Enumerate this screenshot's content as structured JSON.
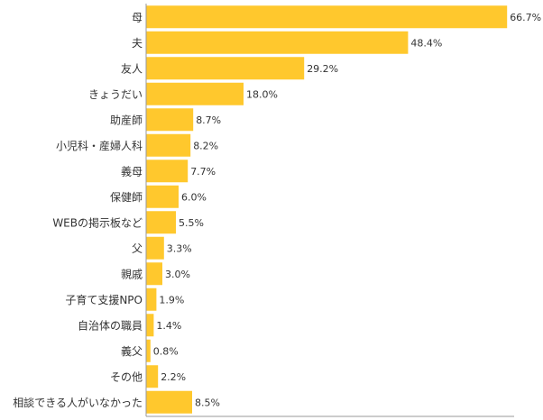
{
  "chart_data": {
    "type": "bar",
    "orientation": "horizontal",
    "categories": [
      "母",
      "夫",
      "友人",
      "きょうだい",
      "助産師",
      "小児科・産婦人科",
      "義母",
      "保健師",
      "WEBの掲示板など",
      "父",
      "親戚",
      "子育て支援NPO",
      "自治体の職員",
      "義父",
      "その他",
      "相談できる人がいなかった"
    ],
    "values": [
      66.7,
      48.4,
      29.2,
      18.0,
      8.7,
      8.2,
      7.7,
      6.0,
      5.5,
      3.3,
      3.0,
      1.9,
      1.4,
      0.8,
      2.2,
      8.5
    ],
    "value_labels": [
      "66.7%",
      "48.4%",
      "29.2%",
      "18.0%",
      "8.7%",
      "8.2%",
      "7.7%",
      "6.0%",
      "5.5%",
      "3.3%",
      "3.0%",
      "1.9%",
      "1.4%",
      "0.8%",
      "2.2%",
      "8.5%"
    ],
    "unit": "%",
    "xlim": [
      0,
      70
    ],
    "grid": false,
    "legend": "none",
    "bar_color": "#FFC82D",
    "axis_color": "#999999",
    "text_color": "#333333"
  }
}
